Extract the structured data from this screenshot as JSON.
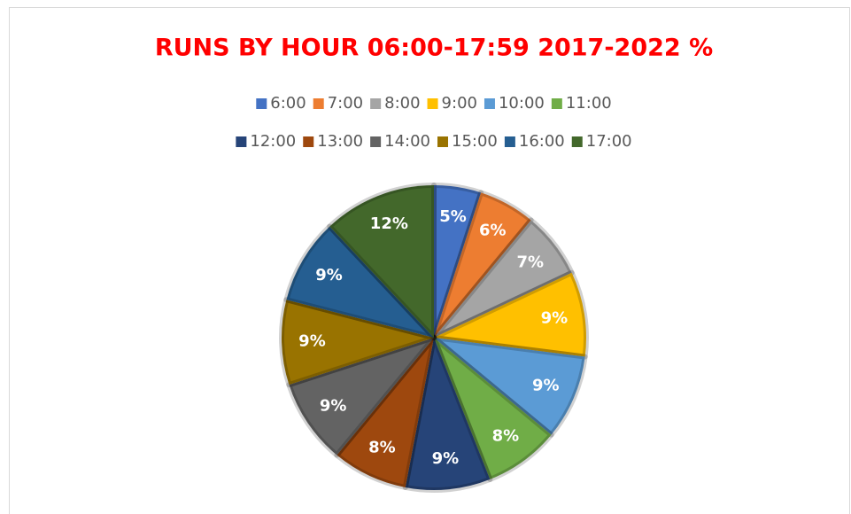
{
  "chart_data": {
    "type": "pie",
    "title": "RUNS BY HOUR 06:00-17:59 2017-2022 %",
    "categories": [
      "6:00",
      "7:00",
      "8:00",
      "9:00",
      "10:00",
      "11:00",
      "12:00",
      "13:00",
      "14:00",
      "15:00",
      "16:00",
      "17:00"
    ],
    "values": [
      5,
      6,
      7,
      9,
      9,
      8,
      9,
      8,
      9,
      9,
      9,
      12
    ],
    "value_labels": [
      "5%",
      "6%",
      "7%",
      "9%",
      "9%",
      "8%",
      "9%",
      "8%",
      "9%",
      "9%",
      "9%",
      "12%"
    ],
    "colors": [
      "#4472c4",
      "#ed7d31",
      "#a5a5a5",
      "#ffc000",
      "#5b9bd5",
      "#70ad47",
      "#264478",
      "#9e480e",
      "#636363",
      "#997300",
      "#255e91",
      "#43682b"
    ],
    "legend": "top"
  }
}
